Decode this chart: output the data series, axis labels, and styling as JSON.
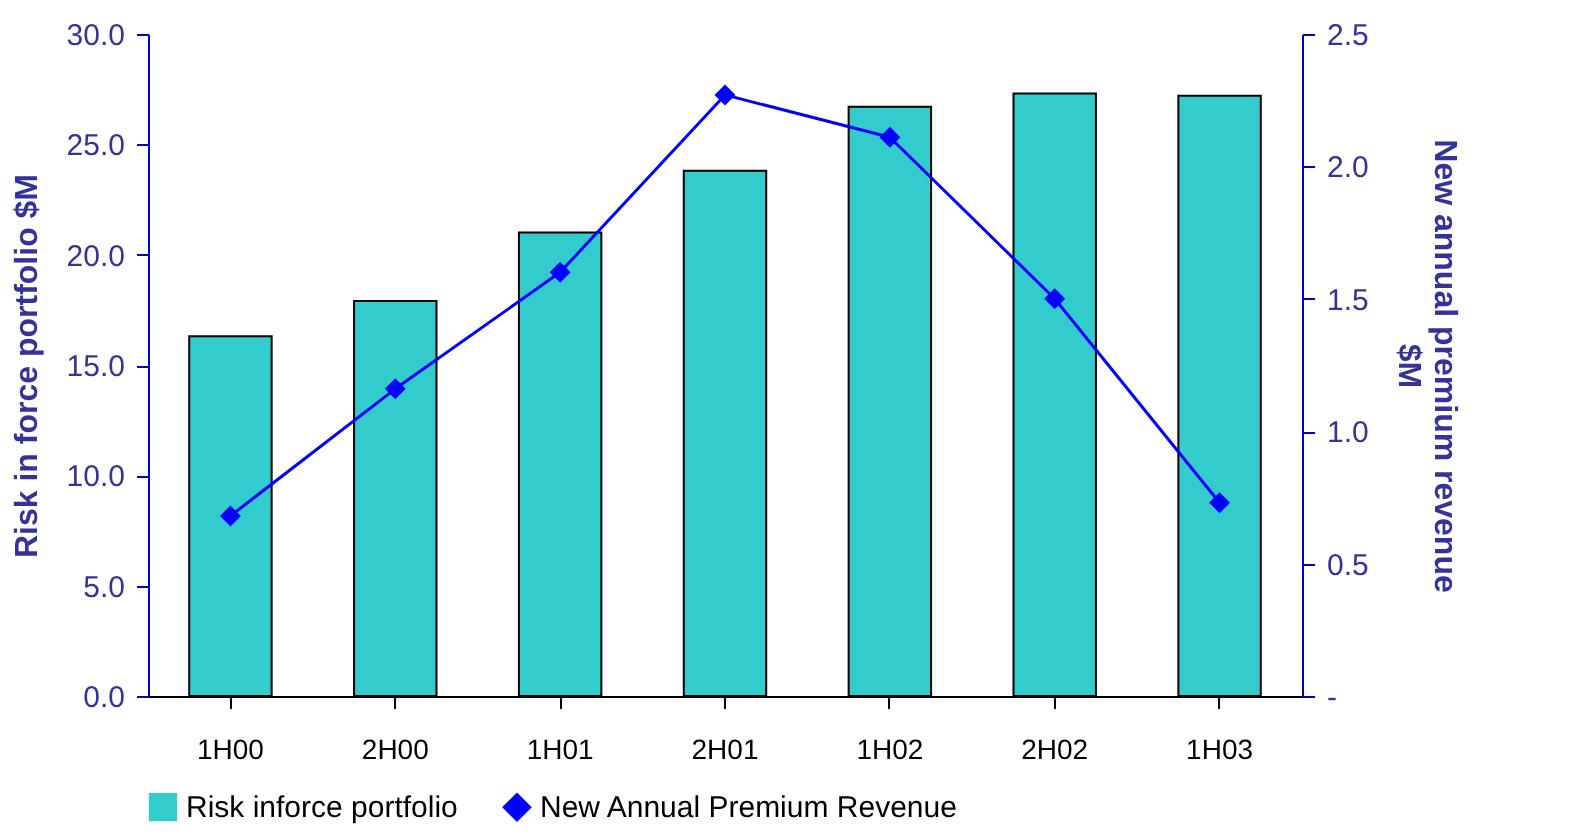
{
  "chart_data": {
    "type": "bar",
    "categories": [
      "1H00",
      "2H00",
      "1H01",
      "2H01",
      "1H02",
      "2H02",
      "1H03"
    ],
    "ylabel": "Risk in force portfolio $M",
    "y2label": "New annual premium revenue $M",
    "series": [
      {
        "name": "Risk inforce portfolio",
        "color": "#33cccc",
        "values": [
          16.3,
          17.9,
          21.0,
          23.8,
          26.7,
          27.3,
          27.2
        ]
      },
      {
        "name": "New Annual Premium Revenue",
        "type": "line",
        "axis": "y2",
        "color": "#0000ff",
        "marker": "diamond",
        "values": [
          0.68,
          1.16,
          1.6,
          2.27,
          2.11,
          1.5,
          0.73
        ]
      }
    ],
    "ylim": [
      0,
      30
    ],
    "yticks": [
      {
        "value": 0,
        "label": "0.0"
      },
      {
        "value": 5,
        "label": "5.0"
      },
      {
        "value": 10,
        "label": "10.0"
      },
      {
        "value": 15,
        "label": "15.0"
      },
      {
        "value": 20,
        "label": "20.0"
      },
      {
        "value": 25,
        "label": "25.0"
      },
      {
        "value": 30,
        "label": "30.0"
      }
    ],
    "y2lim": [
      0,
      2.5
    ],
    "y2ticks": [
      {
        "value": 0,
        "label": "-"
      },
      {
        "value": 0.5,
        "label": "0.5"
      },
      {
        "value": 1,
        "label": "1.0"
      },
      {
        "value": 1.5,
        "label": "1.5"
      },
      {
        "value": 2,
        "label": "2.0"
      },
      {
        "value": 2.5,
        "label": "2.5"
      }
    ],
    "grid": false,
    "legend": "bottom"
  }
}
